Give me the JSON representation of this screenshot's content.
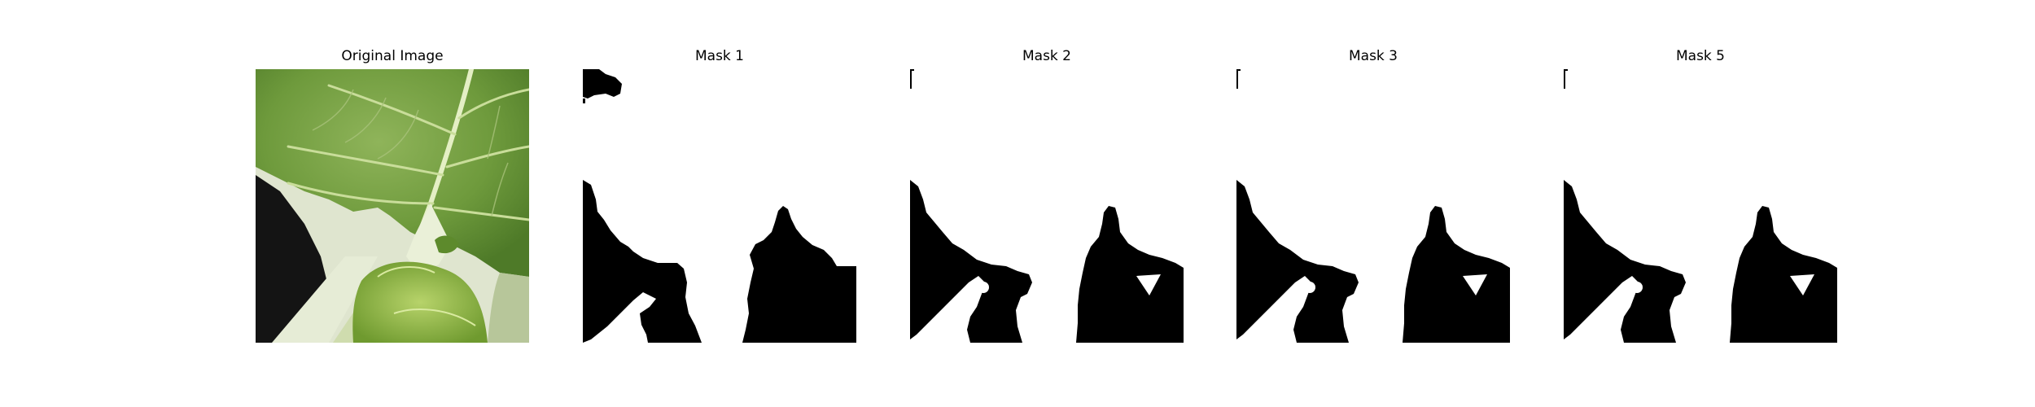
{
  "figure": {
    "panels": [
      {
        "title": "Original Image"
      },
      {
        "title": "Mask 1"
      },
      {
        "title": "Mask 2"
      },
      {
        "title": "Mask 3"
      },
      {
        "title": "Mask 5"
      }
    ]
  },
  "colors": {
    "background": "#ffffff",
    "mask_fill": "#000000",
    "leaf_green": "#6e9a3c",
    "vein_light": "#d8e6b8",
    "dark_shadow": "#111111"
  }
}
